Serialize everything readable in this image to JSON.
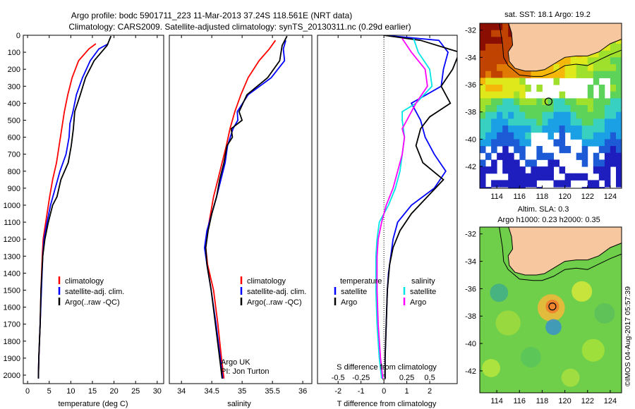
{
  "title": {
    "line1": "Argo profile: bodc 5901711_223 11-Mar-2013 37.24S 118.561E (NRT data)",
    "line2": "Climatology: CARS2009. Satellite-adjusted climatology: synTS_20130311.nc (0.29d earlier)"
  },
  "colors": {
    "climatology": "#ff0000",
    "satellite": "#0000ff",
    "argo": "#000000",
    "sat_salinity": "#00e5e5",
    "argo_salinity": "#ff00ff",
    "land": "#f7c7a0"
  },
  "chart_data": [
    {
      "type": "line",
      "xlabel": "temperature (deg C)",
      "ylabel": "",
      "xlim": [
        -1,
        31.5
      ],
      "ylim": [
        2050,
        0
      ],
      "xticks": [
        0,
        5,
        10,
        15,
        20,
        25,
        30
      ],
      "yticks": [
        0,
        100,
        200,
        300,
        400,
        500,
        600,
        700,
        800,
        900,
        1000,
        1100,
        1200,
        1300,
        1400,
        1500,
        1600,
        1700,
        1800,
        1900,
        2000
      ],
      "legend_position": "lower-center",
      "series": [
        {
          "name": "climatology",
          "color": "#ff0000",
          "y": [
            50,
            80,
            150,
            250,
            350,
            450,
            550,
            650,
            750,
            850,
            950,
            1050,
            1150,
            1200,
            1300,
            1500,
            1700,
            1900,
            2020
          ],
          "x": [
            15.8,
            14.2,
            11.8,
            10.3,
            9.3,
            8.5,
            7.9,
            7.3,
            6.7,
            5.8,
            5.1,
            4.5,
            3.9,
            3.6,
            3.4,
            3.1,
            2.9,
            2.6,
            2.5
          ]
        },
        {
          "name": "satellite-adj. clim.",
          "color": "#0000ff",
          "y": [
            50,
            80,
            150,
            250,
            350,
            450,
            520,
            600,
            700,
            800,
            900,
            1000,
            1100,
            1200,
            1300,
            1500,
            1700,
            1900,
            2020
          ],
          "x": [
            18.7,
            16.5,
            14.5,
            12.7,
            11.3,
            10.5,
            9.8,
            9.6,
            8.9,
            7.5,
            6.4,
            5.3,
            4.5,
            3.8,
            3.5,
            3.2,
            2.9,
            2.6,
            2.5
          ]
        },
        {
          "name": "Argo(..raw -QC)",
          "color": "#000000",
          "y": [
            5,
            60,
            150,
            250,
            350,
            450,
            550,
            650,
            750,
            850,
            950,
            1000,
            1100,
            1200,
            1300,
            1500,
            1700,
            1900,
            2020
          ],
          "x": [
            19.3,
            18.4,
            15.4,
            13.4,
            12.2,
            10.9,
            10.6,
            10.1,
            9.4,
            7.7,
            6.8,
            5.8,
            4.8,
            4.0,
            3.5,
            3.1,
            2.9,
            2.6,
            2.5
          ]
        }
      ]
    },
    {
      "type": "line",
      "xlabel": "salinity",
      "ylabel": "",
      "xlim": [
        33.8,
        36.15
      ],
      "ylim": [
        2050,
        0
      ],
      "xticks": [
        34,
        34.5,
        35,
        35.5,
        36
      ],
      "legend_position": "lower-center",
      "annotations": [
        "Argo UK",
        "PI: Jon Turton"
      ],
      "series": [
        {
          "name": "climatology",
          "color": "#ff0000",
          "y": [
            30,
            80,
            150,
            250,
            350,
            450,
            550,
            650,
            750,
            850,
            950,
            1050,
            1150,
            1250,
            1350,
            1500,
            1700,
            1900,
            2020
          ],
          "x": [
            35.55,
            35.45,
            35.28,
            35.1,
            34.98,
            34.88,
            34.8,
            34.74,
            34.67,
            34.6,
            34.53,
            34.48,
            34.43,
            34.4,
            34.43,
            34.53,
            34.6,
            34.66,
            34.7
          ]
        },
        {
          "name": "satellite-adj. clim.",
          "color": "#0000ff",
          "y": [
            30,
            80,
            150,
            250,
            350,
            450,
            500,
            550,
            650,
            750,
            850,
            950,
            1050,
            1150,
            1250,
            1350,
            1500,
            1700,
            1900,
            2020
          ],
          "x": [
            35.72,
            35.68,
            35.7,
            35.48,
            35.1,
            34.92,
            34.93,
            34.85,
            34.76,
            34.72,
            34.65,
            34.58,
            34.5,
            34.42,
            34.38,
            34.42,
            34.49,
            34.57,
            34.64,
            34.68
          ]
        },
        {
          "name": "Argo(..raw -QC)",
          "color": "#000000",
          "y": [
            5,
            60,
            150,
            250,
            350,
            450,
            500,
            550,
            600,
            650,
            750,
            850,
            950,
            1050,
            1150,
            1250,
            1350,
            1500,
            1700,
            1900,
            2020
          ],
          "x": [
            35.74,
            35.66,
            35.62,
            35.42,
            35.08,
            34.95,
            35.0,
            34.82,
            34.84,
            34.75,
            34.7,
            34.63,
            34.58,
            34.5,
            34.44,
            34.4,
            34.42,
            34.49,
            34.56,
            34.63,
            34.67
          ]
        }
      ]
    },
    {
      "type": "line",
      "xlabel": "T difference from climatology",
      "xlabel_top": "S difference from climatology",
      "ylabel": "",
      "xlim": [
        -2.9,
        3.2
      ],
      "ylim": [
        2050,
        0
      ],
      "xticks": [
        -2,
        -1,
        0,
        1,
        2
      ],
      "xticks_salinity": [
        -0.5,
        -0.25,
        0,
        0.25,
        0.5
      ],
      "legend_position": "lower-center",
      "legend_groups": [
        "temperature",
        "salinity"
      ],
      "series": [
        {
          "name": "satellite",
          "group": "temperature",
          "color": "#0000ff",
          "y": [
            0,
            30,
            100,
            200,
            300,
            400,
            500,
            600,
            700,
            800,
            900,
            1000,
            1100,
            1200,
            1300,
            1400,
            1500,
            1700,
            1900,
            2020
          ],
          "x": [
            0.0,
            2.4,
            2.8,
            2.6,
            2.5,
            1.2,
            1.6,
            1.8,
            2.2,
            2.7,
            2.2,
            1.2,
            0.6,
            0.4,
            0.3,
            0.2,
            0.15,
            0.1,
            0.05,
            0.05
          ]
        },
        {
          "name": "Argo",
          "group": "temperature",
          "color": "#000000",
          "y": [
            0,
            30,
            100,
            200,
            300,
            400,
            480,
            550,
            650,
            750,
            850,
            950,
            1050,
            1150,
            1250,
            1350,
            1500,
            1700,
            1900,
            2020
          ],
          "x": [
            0.0,
            1.6,
            3.3,
            3.0,
            2.5,
            2.9,
            2.0,
            1.6,
            1.4,
            1.7,
            2.6,
            1.9,
            1.2,
            0.7,
            0.4,
            0.25,
            0.15,
            0.1,
            0.05,
            0.05
          ]
        },
        {
          "name": "satellite",
          "group": "salinity",
          "color": "#00e5e5",
          "y": [
            20,
            100,
            200,
            300,
            400,
            450,
            500,
            600,
            700,
            800,
            900,
            1000,
            1100,
            1200,
            1300,
            1500,
            1700,
            1900,
            2020
          ],
          "x": [
            1.3,
            1.5,
            2.0,
            2.1,
            1.4,
            0.8,
            0.8,
            0.9,
            0.8,
            0.7,
            0.5,
            0.2,
            -0.2,
            -0.3,
            -0.35,
            -0.35,
            -0.3,
            -0.2,
            -0.1
          ]
        },
        {
          "name": "Argo",
          "group": "salinity",
          "color": "#ff00ff",
          "y": [
            20,
            100,
            200,
            300,
            400,
            500,
            550,
            600,
            700,
            800,
            900,
            1000,
            1100,
            1200,
            1300,
            1500,
            1700,
            1900,
            2020
          ],
          "x": [
            0.8,
            1.2,
            1.8,
            1.9,
            1.4,
            1.0,
            0.8,
            0.9,
            0.8,
            0.6,
            0.4,
            0.1,
            -0.1,
            -0.25,
            -0.3,
            -0.3,
            -0.25,
            -0.15,
            -0.05
          ]
        }
      ]
    },
    {
      "type": "heatmap",
      "title": "sat. SST: 18.1  Argo: 19.2",
      "xlim": [
        112.5,
        125
      ],
      "ylim": [
        -43.6,
        -31.5
      ],
      "xticks": [
        114,
        116,
        118,
        120,
        122,
        124
      ],
      "yticks": [
        -32,
        -34,
        -36,
        -38,
        -40,
        -42
      ],
      "profile_location": [
        118.56,
        -37.24
      ]
    },
    {
      "type": "heatmap",
      "title": "Altim. SLA: 0.3",
      "subtitle": "Argo h1000: 0.23  h2000: 0.35",
      "xlim": [
        112.5,
        125
      ],
      "ylim": [
        -43.6,
        -31.5
      ],
      "xticks": [
        114,
        116,
        118,
        120,
        122,
        124
      ],
      "yticks": [
        -32,
        -34,
        -36,
        -38,
        -40,
        -42
      ],
      "profile_location": [
        118.9,
        -37.3
      ]
    }
  ],
  "footer": {
    "stamp": "©IMOS 04-Aug-2017 05:57:39"
  }
}
